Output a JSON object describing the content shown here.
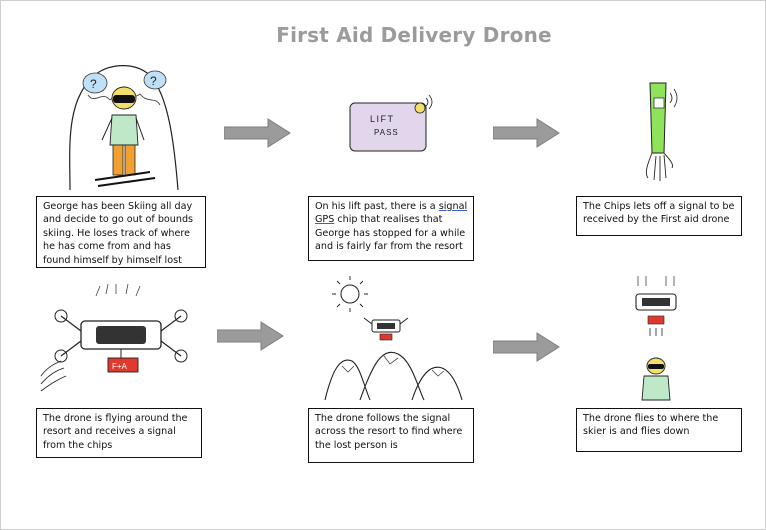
{
  "title": "First Aid Delivery Drone",
  "panels": [
    {
      "caption": "George has been Skiing all day and decide to go out of bounds skiing. He loses track of where he has come from and has found himself by himself lost"
    },
    {
      "caption_a": "On his lift past, there is a ",
      "caption_link1": "signal",
      "caption_b": " ",
      "caption_link2": "GPS",
      "caption_c": " chip that realises that George has stopped for a while and is fairly far from the resort"
    },
    {
      "caption": "The Chips lets off a signal to be received by the First aid drone"
    },
    {
      "caption": "The drone is flying around the resort and receives a signal from the chips"
    },
    {
      "caption": "The drone follows the signal across the resort to find where the lost person is"
    },
    {
      "caption": "The drone flies to where the skier is and flies down"
    }
  ],
  "sketches": {
    "lift_pass_line1": "LIFT",
    "lift_pass_line2": "PASS",
    "first_aid_box": "F+A",
    "question_mark": "?"
  },
  "colors": {
    "arrow_fill": "#9b9b9b",
    "title": "#9b9b9b",
    "jacket": "#bfe8c8",
    "pants": "#f0a030",
    "lift_pass": "#e2d6ec",
    "arm": "#8fe35a",
    "first_aid": "#e0392e"
  }
}
